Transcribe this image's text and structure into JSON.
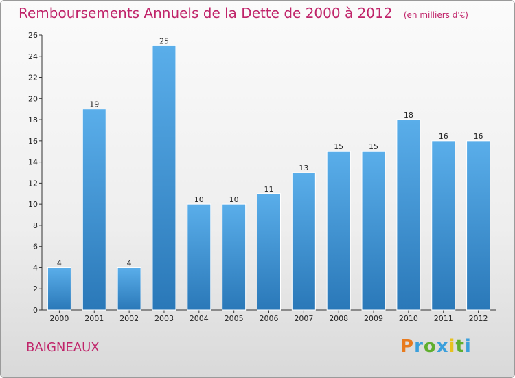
{
  "header": {
    "title": "Remboursements Annuels de la Dette de 2000 à 2012",
    "subtitle": "(en milliers d'€)"
  },
  "footer": {
    "city": "BAIGNEAUX",
    "logo_text": "Proxiti"
  },
  "colors": {
    "title": "#c0246a",
    "bar_top": "#5aaeea",
    "bar_bottom": "#2a78b8",
    "logo_letters": [
      "#e87b1e",
      "#3a9fdc",
      "#5fae2e",
      "#3a9fdc",
      "#e8c21e",
      "#5fae2e",
      "#3a9fdc"
    ]
  },
  "chart_data": {
    "type": "bar",
    "categories": [
      "2000",
      "2001",
      "2002",
      "2003",
      "2004",
      "2005",
      "2006",
      "2007",
      "2008",
      "2009",
      "2010",
      "2011",
      "2012"
    ],
    "values": [
      4,
      19,
      4,
      25,
      10,
      10,
      11,
      13,
      15,
      15,
      18,
      16,
      16
    ],
    "title": "Remboursements Annuels de la Dette de 2000 à 2012",
    "xlabel": "",
    "ylabel": "",
    "ylim": [
      0,
      26
    ],
    "yticks": [
      0,
      2,
      4,
      6,
      8,
      10,
      12,
      14,
      16,
      18,
      20,
      22,
      24,
      26
    ],
    "grid": false,
    "data_labels": true
  }
}
